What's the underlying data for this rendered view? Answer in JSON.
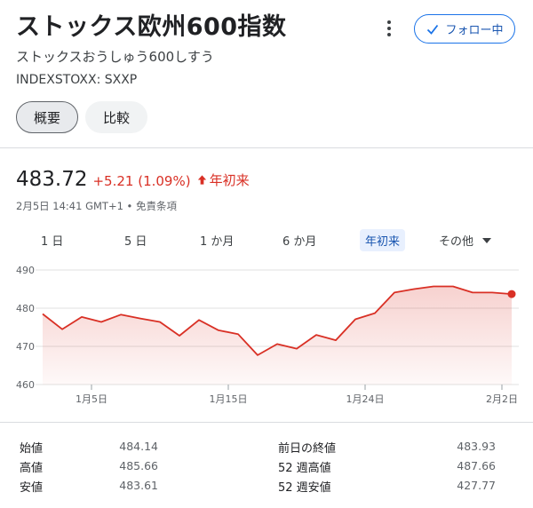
{
  "header": {
    "title": "ストックス欧州600指数",
    "subtitle": "ストックスおうしゅう600しすう",
    "ticker": "INDEXSTOXX: SXXP",
    "follow_label": "フォロー中"
  },
  "tabs": [
    {
      "label": "概要",
      "active": true
    },
    {
      "label": "比較",
      "active": false
    }
  ],
  "quote": {
    "price": "483.72",
    "change": "+5.21 (1.09%)",
    "period_label": "年初来",
    "timestamp": "2月5日 14:41 GMT+1 • 免責条項",
    "change_color": "#d93025"
  },
  "ranges": {
    "items": [
      "1 日",
      "5 日",
      "1 か月",
      "6 か月",
      "年初来"
    ],
    "selected": "年初来",
    "more_label": "その他"
  },
  "chart_data": {
    "type": "area",
    "x_ticks": [
      "1月5日",
      "1月15日",
      "1月24日",
      "2月2日"
    ],
    "x_tick_index": [
      2.5,
      9.5,
      16.5,
      23.5
    ],
    "y_ticks": [
      460,
      470,
      480,
      490
    ],
    "ylim": [
      460,
      490
    ],
    "grid": true,
    "color": "#d93025",
    "series": [
      {
        "values": [
          478.5,
          474.5,
          477.7,
          476.4,
          478.3,
          477.3,
          476.4,
          472.8,
          476.9,
          474.2,
          473.2,
          467.7,
          470.6,
          469.4,
          473.0,
          471.6,
          477.1,
          478.7,
          484.1,
          485.0,
          485.7,
          485.7,
          484.1,
          484.1,
          483.7
        ]
      }
    ]
  },
  "stats": {
    "left": [
      {
        "label": "始値",
        "value": "484.14"
      },
      {
        "label": "高値",
        "value": "485.66"
      },
      {
        "label": "安値",
        "value": "483.61"
      }
    ],
    "right": [
      {
        "label": "前日の終値",
        "value": "483.93"
      },
      {
        "label": "52 週高値",
        "value": "487.66"
      },
      {
        "label": "52 週安値",
        "value": "427.77"
      }
    ]
  }
}
